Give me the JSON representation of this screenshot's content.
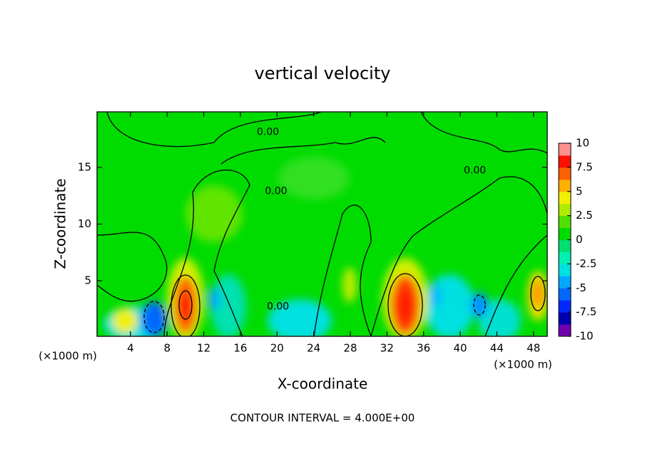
{
  "chart_data": {
    "type": "contour",
    "title": "vertical velocity",
    "xlabel": "X-coordinate",
    "ylabel": "Z-coordinate",
    "x_unit": "(×1000 m)",
    "footer": "CONTOUR INTERVAL = 4.000E+00",
    "xlim": [
      0.35,
      49.5
    ],
    "ylim": [
      0.1,
      19.9
    ],
    "xticks": [
      4,
      8,
      12,
      16,
      20,
      24,
      28,
      32,
      36,
      40,
      44,
      48
    ],
    "yticks": [
      5,
      10,
      15
    ],
    "colorbar": {
      "lim": [
        -10,
        10
      ],
      "ticks": [
        10,
        7.5,
        5,
        2.5,
        0,
        -2.5,
        -5,
        -7.5,
        -10
      ],
      "colors": [
        "#7000b0",
        "#0000b0",
        "#0028ff",
        "#0068ff",
        "#00a8ff",
        "#00e0e0",
        "#00f0b0",
        "#00e070",
        "#00dc00",
        "#50e000",
        "#b0ec00",
        "#f0f000",
        "#ffb000",
        "#ff6000",
        "#ff1000",
        "#ff9090"
      ]
    },
    "contour_labels": [
      {
        "x": 19.0,
        "y": 18.1,
        "label": "0.00"
      },
      {
        "x": 19.9,
        "y": 12.9,
        "label": "0.00"
      },
      {
        "x": 20.1,
        "y": 2.7,
        "label": "0.00"
      },
      {
        "x": 41.6,
        "y": 14.7,
        "label": "0.00"
      }
    ]
  }
}
